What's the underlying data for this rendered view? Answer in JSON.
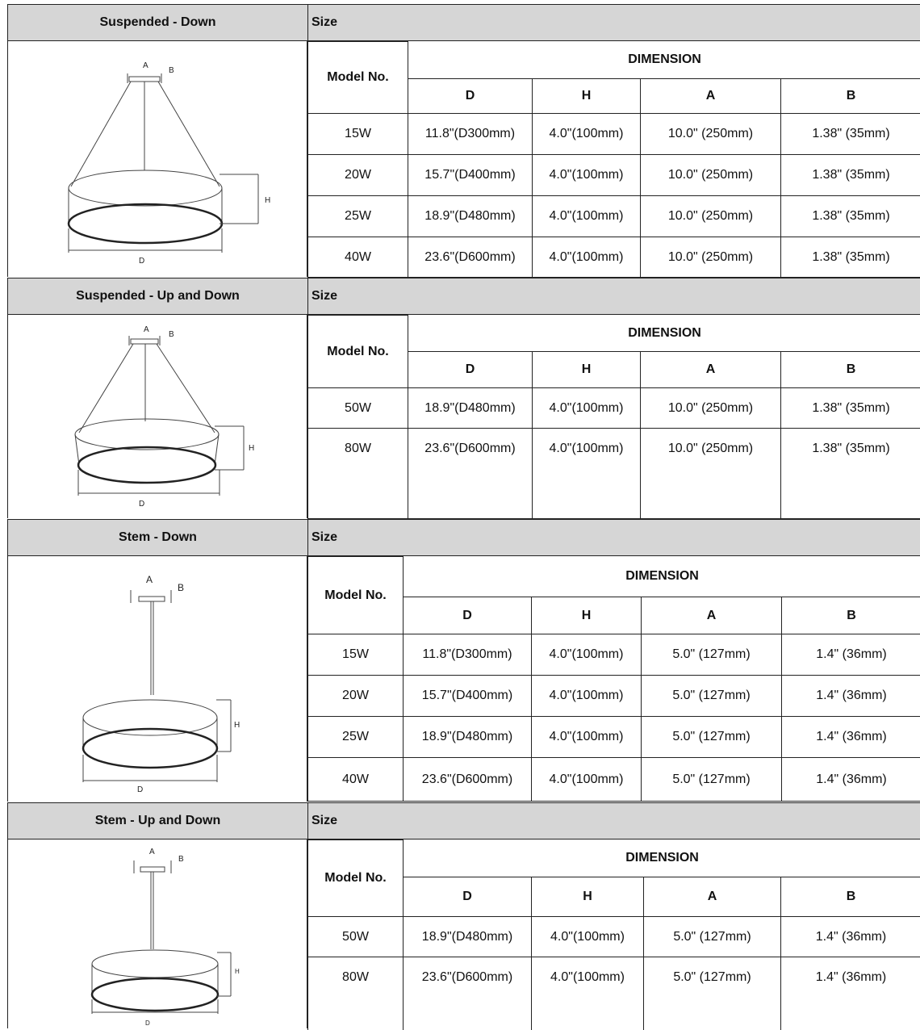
{
  "sections": [
    {
      "type_label": "Suspended - Down",
      "size_label": "Size",
      "model_header": "Model No.",
      "dimension_header": "DIMENSION",
      "col_headers": [
        "D",
        "H",
        "A",
        "B"
      ],
      "diagram_labels": {
        "a": "A",
        "b": "B",
        "h": "H",
        "d": "D"
      },
      "rows": [
        {
          "model": "15W",
          "d": "11.8\"(D300mm)",
          "h": "4.0\"(100mm)",
          "a": "10.0\" (250mm)",
          "b": "1.38\" (35mm)"
        },
        {
          "model": "20W",
          "d": "15.7\"(D400mm)",
          "h": "4.0\"(100mm)",
          "a": "10.0\" (250mm)",
          "b": "1.38\" (35mm)"
        },
        {
          "model": "25W",
          "d": "18.9\"(D480mm)",
          "h": "4.0\"(100mm)",
          "a": "10.0\" (250mm)",
          "b": "1.38\" (35mm)"
        },
        {
          "model": "40W",
          "d": "23.6\"(D600mm)",
          "h": "4.0\"(100mm)",
          "a": "10.0\" (250mm)",
          "b": "1.38\" (35mm)"
        }
      ]
    },
    {
      "type_label": "Suspended - Up and Down",
      "size_label": "Size",
      "model_header": "Model No.",
      "dimension_header": "DIMENSION",
      "col_headers": [
        "D",
        "H",
        "A",
        "B"
      ],
      "diagram_labels": {
        "a": "A",
        "b": "B",
        "h": "H",
        "d": "D"
      },
      "rows": [
        {
          "model": "50W",
          "d": "18.9\"(D480mm)",
          "h": "4.0\"(100mm)",
          "a": "10.0\" (250mm)",
          "b": "1.38\" (35mm)"
        },
        {
          "model": "80W",
          "d": "23.6\"(D600mm)",
          "h": "4.0\"(100mm)",
          "a": "10.0\" (250mm)",
          "b": "1.38\" (35mm)"
        }
      ]
    },
    {
      "type_label": "Stem - Down",
      "size_label": "Size",
      "model_header": "Model No.",
      "dimension_header": "DIMENSION",
      "col_headers": [
        "D",
        "H",
        "A",
        "B"
      ],
      "diagram_labels": {
        "a": "A",
        "b": "B",
        "h": "H",
        "d": "D"
      },
      "rows": [
        {
          "model": "15W",
          "d": "11.8\"(D300mm)",
          "h": "4.0\"(100mm)",
          "a": "5.0\" (127mm)",
          "b": "1.4\" (36mm)"
        },
        {
          "model": "20W",
          "d": "15.7\"(D400mm)",
          "h": "4.0\"(100mm)",
          "a": "5.0\" (127mm)",
          "b": "1.4\" (36mm)"
        },
        {
          "model": "25W",
          "d": "18.9\"(D480mm)",
          "h": "4.0\"(100mm)",
          "a": "5.0\" (127mm)",
          "b": "1.4\" (36mm)"
        },
        {
          "model": "40W",
          "d": "23.6\"(D600mm)",
          "h": "4.0\"(100mm)",
          "a": "5.0\" (127mm)",
          "b": "1.4\" (36mm)"
        }
      ]
    },
    {
      "type_label": "Stem - Up and Down",
      "size_label": "Size",
      "model_header": "Model No.",
      "dimension_header": "DIMENSION",
      "col_headers": [
        "D",
        "H",
        "A",
        "B"
      ],
      "diagram_labels": {
        "a": "A",
        "b": "B",
        "h": "H",
        "d": "D"
      },
      "rows": [
        {
          "model": "50W",
          "d": "18.9\"(D480mm)",
          "h": "4.0\"(100mm)",
          "a": "5.0\" (127mm)",
          "b": "1.4\" (36mm)"
        },
        {
          "model": "80W",
          "d": "23.6\"(D600mm)",
          "h": "4.0\"(100mm)",
          "a": "5.0\" (127mm)",
          "b": "1.4\" (36mm)"
        }
      ]
    }
  ]
}
